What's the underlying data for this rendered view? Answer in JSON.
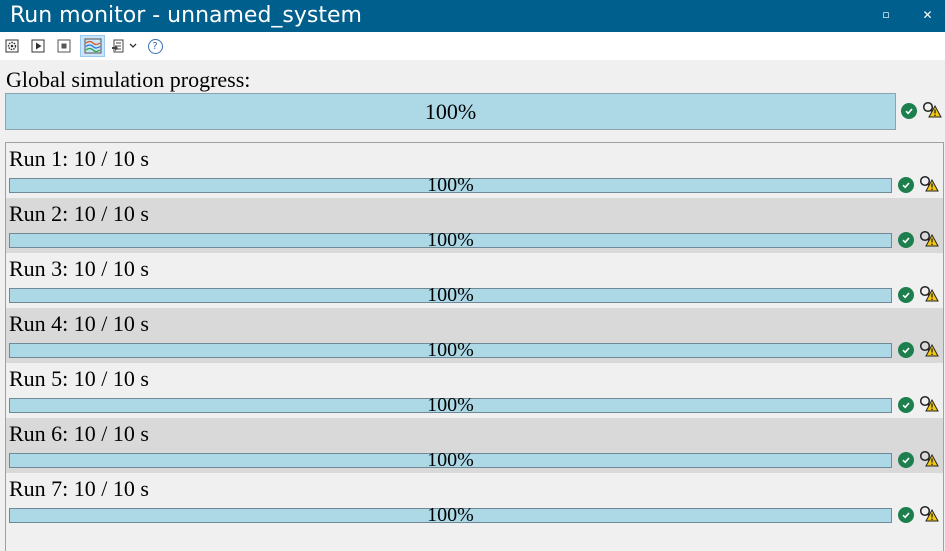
{
  "window": {
    "title": "Run monitor - unnamed_system",
    "maximize_glyph": "▫",
    "close_glyph": "✕"
  },
  "toolbar": {
    "items": [
      {
        "icon": "settings-gear-icon"
      },
      {
        "icon": "play-icon"
      },
      {
        "icon": "stop-icon"
      },
      {
        "icon": "waveform-chart-icon",
        "active": true
      },
      {
        "icon": "export-dropdown-icon"
      },
      {
        "icon": "help-icon",
        "glyph": "?"
      }
    ]
  },
  "global": {
    "label": "Global simulation progress:",
    "progress": 1.0,
    "percent_text": "100%",
    "status_icon": "success-check-icon",
    "log_icon": "warning-log-icon"
  },
  "runs": [
    {
      "label": "Run 1: 10 / 10 s",
      "progress": 1.0,
      "percent_text": "100%"
    },
    {
      "label": "Run 2: 10 / 10 s",
      "progress": 1.0,
      "percent_text": "100%"
    },
    {
      "label": "Run 3: 10 / 10 s",
      "progress": 1.0,
      "percent_text": "100%"
    },
    {
      "label": "Run 4: 10 / 10 s",
      "progress": 1.0,
      "percent_text": "100%"
    },
    {
      "label": "Run 5: 10 / 10 s",
      "progress": 1.0,
      "percent_text": "100%"
    },
    {
      "label": "Run 6: 10 / 10 s",
      "progress": 1.0,
      "percent_text": "100%"
    },
    {
      "label": "Run 7: 10 / 10 s",
      "progress": 1.0,
      "percent_text": "100%"
    }
  ],
  "colors": {
    "titlebar": "#005f8c",
    "progress_fill": "#add8e6",
    "success": "#1d7f4e",
    "warning": "#f2c811",
    "alt_row": "#d9d9d9"
  }
}
